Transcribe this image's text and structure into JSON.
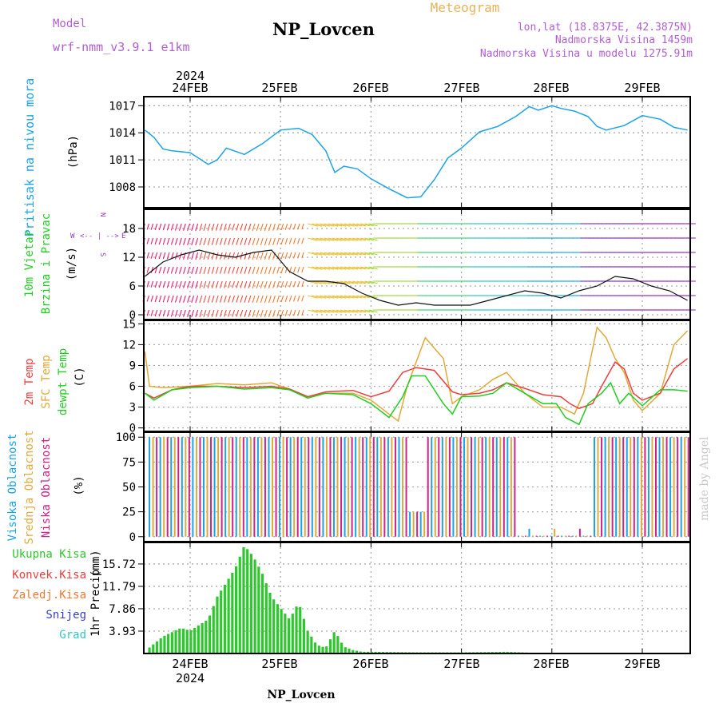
{
  "header": {
    "model_label": "Model",
    "model_name": "wrf-nmm_v3.9.1 e1km",
    "title": "NP_Lovcen",
    "product": "Meteogram",
    "lonlat": "lon,lat (18.8375E, 42.3875N)",
    "elevation": "Nadmorska Visina 1459m",
    "model_elevation": "Nadmorska Visina u modelu 1275.91m"
  },
  "footer": {
    "station": "NP_Lovcen"
  },
  "watermark": "made by Angel",
  "time_axis": {
    "year": "2024",
    "days": [
      "24FEB",
      "25FEB",
      "26FEB",
      "27FEB",
      "28FEB",
      "29FEB"
    ]
  },
  "colors": {
    "pressure": "#1aa3e8",
    "temp2m": "#f03c3c",
    "sfc_temp": "#e0a93a",
    "dewpt": "#1fcf1f",
    "high_cloud": "#1aa3e8",
    "mid_cloud": "#e0a93a",
    "low_cloud": "#d0208a",
    "precip": "#2ec82e",
    "wind_label": "#1fcf1f",
    "legend_violet": "#9040c0"
  },
  "wind_legend": {
    "north": "N",
    "west": "W",
    "east": "E",
    "south": "S",
    "arrows": "<-- | -->"
  },
  "chart_data": [
    {
      "type": "line",
      "panel": "pressure",
      "ylabel": "Pritisak na nivou mora",
      "unit": "(hPa)",
      "yticks": [
        1008,
        1011,
        1014,
        1017
      ],
      "ylim": [
        1005.7,
        1018.0
      ],
      "series": [
        {
          "x": [
            23.5,
            23.6,
            23.7,
            23.8,
            24.0,
            24.2,
            24.3,
            24.4,
            24.6,
            24.8,
            25.0,
            25.2,
            25.35,
            25.5,
            25.6,
            25.7,
            25.85,
            26.0,
            26.2,
            26.4,
            26.55,
            26.7,
            26.85,
            27.0,
            27.2,
            27.4,
            27.6,
            27.75,
            27.85,
            28.0,
            28.1,
            28.25,
            28.4,
            28.5,
            28.6,
            28.8,
            29.0,
            29.2,
            29.35,
            29.5
          ],
          "values": [
            1014.3,
            1013.5,
            1012.2,
            1012.0,
            1011.8,
            1010.5,
            1011.0,
            1012.3,
            1011.6,
            1012.8,
            1014.3,
            1014.5,
            1013.8,
            1012.0,
            1009.6,
            1010.3,
            1010.0,
            1008.9,
            1007.8,
            1006.8,
            1006.9,
            1008.8,
            1011.2,
            1012.3,
            1014.1,
            1014.7,
            1015.8,
            1016.9,
            1016.5,
            1017.0,
            1016.7,
            1016.4,
            1015.8,
            1014.7,
            1014.3,
            1014.8,
            1015.9,
            1015.5,
            1014.6,
            1014.3
          ]
        }
      ]
    },
    {
      "type": "line",
      "panel": "wind",
      "ylabel_line1": "10m Vjetar",
      "ylabel_line2": "Brzina i Pravac",
      "unit": "(m/s)",
      "yticks": [
        0,
        6,
        12,
        18
      ],
      "ylim": [
        -1,
        22
      ],
      "series": [
        {
          "x": [
            23.5,
            23.7,
            23.9,
            24.1,
            24.3,
            24.5,
            24.7,
            24.9,
            25.1,
            25.3,
            25.5,
            25.7,
            25.9,
            26.1,
            26.3,
            26.5,
            26.7,
            26.9,
            27.1,
            27.3,
            27.5,
            27.7,
            27.9,
            28.1,
            28.3,
            28.5,
            28.7,
            28.9,
            29.1,
            29.3,
            29.5
          ],
          "values": [
            8,
            11,
            12.5,
            13.5,
            12.5,
            12,
            13,
            13.5,
            9,
            7,
            7,
            6.5,
            4.5,
            3,
            2,
            2.5,
            2,
            2,
            2,
            3,
            4,
            5,
            4.5,
            3.5,
            5,
            6,
            8,
            7.5,
            6,
            5,
            3
          ]
        }
      ]
    },
    {
      "type": "line",
      "panel": "temperature",
      "ylabel_line1": "2m Temp",
      "ylabel_line2": "SFC Temp",
      "ylabel_line3": "dewpt Temp",
      "unit": "(C)",
      "yticks": [
        0,
        3,
        6,
        9,
        12,
        15
      ],
      "ylim": [
        -0.5,
        15.5
      ],
      "series": [
        {
          "name": "2m Temp",
          "x": [
            23.5,
            23.6,
            23.8,
            24.0,
            24.3,
            24.6,
            24.9,
            25.1,
            25.3,
            25.5,
            25.8,
            26.0,
            26.2,
            26.35,
            26.5,
            26.7,
            26.9,
            27.0,
            27.2,
            27.35,
            27.5,
            27.7,
            27.9,
            28.1,
            28.2,
            28.3,
            28.45,
            28.55,
            28.7,
            28.8,
            28.9,
            29.0,
            29.2,
            29.35,
            29.5
          ],
          "values": [
            5,
            4.3,
            5.5,
            6,
            6,
            5.8,
            6,
            5.6,
            4.5,
            5.2,
            5.4,
            4.5,
            5.3,
            8,
            8.7,
            8.3,
            5.2,
            4.8,
            5,
            5.5,
            6.5,
            5.7,
            4.8,
            4.5,
            3.5,
            2.8,
            3.5,
            6,
            9.5,
            8.5,
            5,
            4,
            5,
            8.5,
            10
          ]
        },
        {
          "name": "SFC Temp",
          "x": [
            23.5,
            23.55,
            23.7,
            24.0,
            24.3,
            24.6,
            24.9,
            25.1,
            25.3,
            25.5,
            25.8,
            26.0,
            26.2,
            26.3,
            26.4,
            26.6,
            26.8,
            26.9,
            27.0,
            27.2,
            27.35,
            27.5,
            27.7,
            27.9,
            28.1,
            28.25,
            28.35,
            28.5,
            28.6,
            28.7,
            28.8,
            28.9,
            29.0,
            29.2,
            29.35,
            29.5
          ],
          "values": [
            11,
            6,
            5.8,
            6,
            6.4,
            6.2,
            6.5,
            5.6,
            4.5,
            5,
            5,
            4,
            2,
            1,
            6,
            13,
            10,
            3.5,
            4.5,
            5.5,
            7,
            8,
            5,
            3,
            3,
            2,
            5,
            14.5,
            13,
            10,
            8,
            4,
            2.5,
            5,
            12,
            14
          ]
        },
        {
          "name": "dewpt Temp",
          "x": [
            23.5,
            23.6,
            23.8,
            24.0,
            24.3,
            24.6,
            24.9,
            25.1,
            25.3,
            25.5,
            25.8,
            26.0,
            26.1,
            26.2,
            26.35,
            26.45,
            26.6,
            26.8,
            26.9,
            27.0,
            27.2,
            27.35,
            27.5,
            27.7,
            27.9,
            28.05,
            28.15,
            28.3,
            28.4,
            28.55,
            28.65,
            28.75,
            28.85,
            29.0,
            29.2,
            29.35,
            29.5
          ],
          "values": [
            5,
            4,
            5.5,
            5.8,
            6,
            5.6,
            5.8,
            5.5,
            4.3,
            5,
            4.8,
            3.5,
            2.5,
            1.5,
            4.5,
            7.5,
            7.5,
            3.5,
            2,
            4.5,
            4.6,
            5,
            6.5,
            5,
            3.5,
            3.5,
            1.5,
            0.5,
            3.5,
            5,
            6.5,
            3.5,
            5,
            3.2,
            5.5,
            5.5,
            5.3
          ]
        }
      ]
    },
    {
      "type": "bar",
      "panel": "clouds",
      "ylabel_line1": "Visoka Oblacnost",
      "ylabel_line2": "Srednja Oblacnost",
      "ylabel_line3": "Niska Oblacnost",
      "unit": "(%)",
      "yticks": [
        0,
        25,
        50,
        75,
        100
      ],
      "ylim": [
        -5,
        105
      ]
    },
    {
      "type": "bar",
      "panel": "precipitation",
      "ylabel": "1hr Precip",
      "unit": "(mm)",
      "yticks": [
        3.93,
        7.86,
        11.79,
        15.72
      ],
      "ylim": [
        0,
        19.5
      ],
      "legend": [
        "Ukupna Kisa",
        "Konvek.Kisa",
        "Zaledj.Kisa",
        "Snijeg",
        "Grad"
      ],
      "series": [
        {
          "name": "Ukupna Kisa",
          "x": [
            23.5,
            23.7,
            23.9,
            24.0,
            24.2,
            24.3,
            24.5,
            24.6,
            24.7,
            24.8,
            24.9,
            25.0,
            25.1,
            25.2,
            25.3,
            25.4,
            25.5,
            25.6,
            25.7,
            25.8,
            25.9,
            26.0,
            26.5,
            27.0,
            27.5,
            28.0
          ],
          "values": [
            0.4,
            3,
            4.5,
            4,
            6,
            10,
            15,
            19,
            17,
            14,
            10,
            8,
            6,
            9,
            4,
            1.5,
            1,
            4,
            1.2,
            0.6,
            0.3,
            0.3,
            0.2,
            0.2,
            0.3,
            0
          ]
        }
      ]
    }
  ]
}
